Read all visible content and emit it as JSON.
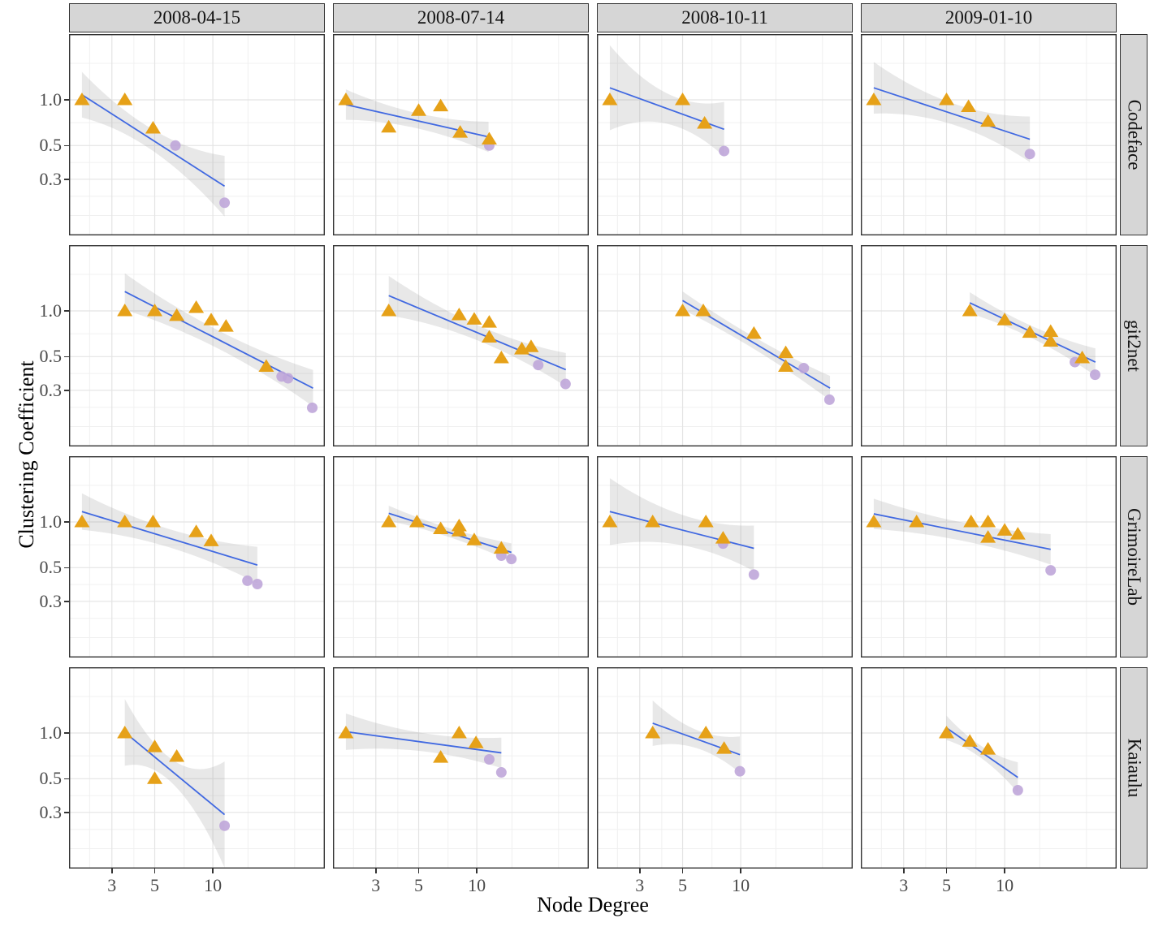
{
  "chart_data": {
    "type": "scatter",
    "title": "",
    "xlabel": "Node Degree",
    "ylabel": "Clustering Coefficient",
    "x_scale": "log10",
    "y_scale": "log10",
    "x_ticks": [
      3,
      5,
      10
    ],
    "y_ticks": [
      "1.0",
      "0.5",
      "0.3"
    ],
    "x_tick_values": [
      3,
      5,
      10
    ],
    "y_tick_values": [
      1.0,
      0.5,
      0.3
    ],
    "x_domain": [
      1.8,
      38
    ],
    "y_domain": [
      0.128,
      2.71
    ],
    "x_grid_minor": [
      2.3,
      3.9,
      7.1,
      15.2,
      26.5
    ],
    "y_grid_minor": [
      1.74,
      0.707,
      0.387,
      0.232,
      0.173
    ],
    "grid": "on",
    "legend_position": "none",
    "facet_columns": [
      "2008-04-15",
      "2008-07-14",
      "2008-10-11",
      "2009-01-10"
    ],
    "facet_rows": [
      "Codeface",
      "git2net",
      "GrimoireLab",
      "Kaiaulu"
    ],
    "series_markers": [
      "triangle",
      "circle"
    ],
    "panels": [
      {
        "row": "Codeface",
        "col": "2008-04-15",
        "triangles": [
          [
            2.1,
            1.0
          ],
          [
            3.5,
            1.0
          ],
          [
            4.9,
            0.65
          ]
        ],
        "circles": [
          [
            6.4,
            0.5
          ],
          [
            11.5,
            0.21
          ]
        ],
        "trend": [
          2.1,
          1.08,
          11.5,
          0.27
        ],
        "band": [
          0.15,
          0.07,
          0.2
        ]
      },
      {
        "row": "Codeface",
        "col": "2008-07-14",
        "triangles": [
          [
            2.1,
            1.0
          ],
          [
            3.5,
            0.66
          ],
          [
            5.0,
            0.85
          ],
          [
            6.5,
            0.91
          ],
          [
            8.2,
            0.61
          ],
          [
            11.6,
            0.55
          ]
        ],
        "circles": [
          [
            11.6,
            0.5
          ]
        ],
        "trend": [
          2.1,
          0.93,
          11.5,
          0.57
        ],
        "band": [
          0.1,
          0.05,
          0.1
        ]
      },
      {
        "row": "Codeface",
        "col": "2008-10-11",
        "triangles": [
          [
            2.1,
            1.0
          ],
          [
            5.0,
            1.0
          ],
          [
            6.5,
            0.7
          ]
        ],
        "circles": [
          [
            8.2,
            0.46
          ]
        ],
        "trend": [
          2.1,
          1.2,
          8.2,
          0.64
        ],
        "band": [
          0.28,
          0.1,
          0.18
        ]
      },
      {
        "row": "Codeface",
        "col": "2009-01-10",
        "triangles": [
          [
            2.1,
            1.0
          ],
          [
            5.0,
            1.0
          ],
          [
            6.5,
            0.9
          ],
          [
            8.2,
            0.72
          ]
        ],
        "circles": [
          [
            13.5,
            0.44
          ]
        ],
        "trend": [
          2.1,
          1.2,
          13.5,
          0.55
        ],
        "band": [
          0.17,
          0.07,
          0.15
        ]
      },
      {
        "row": "git2net",
        "col": "2008-04-15",
        "triangles": [
          [
            3.5,
            1.0
          ],
          [
            5.0,
            1.0
          ],
          [
            6.5,
            0.93
          ],
          [
            8.2,
            1.05
          ],
          [
            9.8,
            0.87
          ],
          [
            11.7,
            0.79
          ],
          [
            18.9,
            0.43
          ]
        ],
        "circles": [
          [
            22.7,
            0.37
          ],
          [
            24.5,
            0.36
          ],
          [
            32.7,
            0.23
          ]
        ],
        "trend": [
          3.5,
          1.34,
          33,
          0.31
        ],
        "band": [
          0.12,
          0.06,
          0.12
        ]
      },
      {
        "row": "git2net",
        "col": "2008-07-14",
        "triangles": [
          [
            3.5,
            1.0
          ],
          [
            8.1,
            0.94
          ],
          [
            9.7,
            0.88
          ],
          [
            11.6,
            0.84
          ],
          [
            11.6,
            0.67
          ],
          [
            13.4,
            0.49
          ],
          [
            17.1,
            0.56
          ],
          [
            19.1,
            0.58
          ]
        ],
        "circles": [
          [
            20.8,
            0.44
          ],
          [
            28.8,
            0.33
          ]
        ],
        "trend": [
          3.5,
          1.26,
          28.9,
          0.41
        ],
        "band": [
          0.13,
          0.05,
          0.11
        ]
      },
      {
        "row": "git2net",
        "col": "2008-10-11",
        "triangles": [
          [
            5.0,
            1.0
          ],
          [
            6.4,
            1.0
          ],
          [
            11.7,
            0.71
          ],
          [
            17.1,
            0.53
          ],
          [
            17.1,
            0.43
          ]
        ],
        "circles": [
          [
            21.2,
            0.42
          ],
          [
            28.8,
            0.26
          ]
        ],
        "trend": [
          5.0,
          1.17,
          29,
          0.31
        ],
        "band": [
          0.06,
          0.04,
          0.08
        ]
      },
      {
        "row": "git2net",
        "col": "2009-01-10",
        "triangles": [
          [
            6.6,
            1.0
          ],
          [
            10.0,
            0.87
          ],
          [
            13.5,
            0.72
          ],
          [
            17.3,
            0.73
          ],
          [
            17.3,
            0.63
          ],
          [
            25.2,
            0.49
          ]
        ],
        "circles": [
          [
            23.1,
            0.46
          ],
          [
            29.4,
            0.38
          ]
        ],
        "trend": [
          6.6,
          1.13,
          29.5,
          0.46
        ],
        "band": [
          0.07,
          0.04,
          0.09
        ]
      },
      {
        "row": "GrimoireLab",
        "col": "2008-04-15",
        "triangles": [
          [
            2.1,
            1.0
          ],
          [
            3.5,
            1.0
          ],
          [
            4.9,
            1.0
          ],
          [
            8.2,
            0.86
          ],
          [
            9.8,
            0.75
          ]
        ],
        "circles": [
          [
            15.1,
            0.41
          ],
          [
            17.0,
            0.39
          ]
        ],
        "trend": [
          2.1,
          1.17,
          17,
          0.52
        ],
        "band": [
          0.12,
          0.06,
          0.12
        ]
      },
      {
        "row": "GrimoireLab",
        "col": "2008-07-14",
        "triangles": [
          [
            3.5,
            1.0
          ],
          [
            4.9,
            1.0
          ],
          [
            6.5,
            0.9
          ],
          [
            8.1,
            0.94
          ],
          [
            8.1,
            0.87
          ],
          [
            9.7,
            0.76
          ],
          [
            13.4,
            0.67
          ]
        ],
        "circles": [
          [
            13.4,
            0.6
          ],
          [
            15.1,
            0.57
          ]
        ],
        "trend": [
          3.5,
          1.14,
          15.1,
          0.63
        ],
        "band": [
          0.05,
          0.03,
          0.06
        ]
      },
      {
        "row": "GrimoireLab",
        "col": "2008-10-11",
        "triangles": [
          [
            2.1,
            1.0
          ],
          [
            3.5,
            1.0
          ],
          [
            6.6,
            1.0
          ],
          [
            8.1,
            0.78
          ]
        ],
        "circles": [
          [
            8.1,
            0.72
          ],
          [
            11.7,
            0.45
          ]
        ],
        "trend": [
          2.1,
          1.17,
          11.7,
          0.67
        ],
        "band": [
          0.22,
          0.1,
          0.15
        ]
      },
      {
        "row": "GrimoireLab",
        "col": "2009-01-10",
        "triangles": [
          [
            2.1,
            1.0
          ],
          [
            3.5,
            1.0
          ],
          [
            6.7,
            1.0
          ],
          [
            8.2,
            1.0
          ],
          [
            8.2,
            0.79
          ],
          [
            10.0,
            0.88
          ],
          [
            11.7,
            0.83
          ]
        ],
        "circles": [
          [
            17.3,
            0.48
          ]
        ],
        "trend": [
          2.1,
          1.13,
          17.3,
          0.66
        ],
        "band": [
          0.1,
          0.06,
          0.1
        ]
      },
      {
        "row": "Kaiaulu",
        "col": "2008-04-15",
        "triangles": [
          [
            3.5,
            1.0
          ],
          [
            5.0,
            0.81
          ],
          [
            6.5,
            0.7
          ],
          [
            5.0,
            0.5
          ]
        ],
        "circles": [
          [
            11.5,
            0.245
          ]
        ],
        "trend": [
          3.5,
          1.01,
          11.5,
          0.29
        ],
        "band": [
          0.22,
          0.08,
          0.35
        ]
      },
      {
        "row": "Kaiaulu",
        "col": "2008-07-14",
        "triangles": [
          [
            2.1,
            1.0
          ],
          [
            8.1,
            1.0
          ],
          [
            9.9,
            0.86
          ],
          [
            6.5,
            0.69
          ]
        ],
        "circles": [
          [
            11.6,
            0.67
          ],
          [
            13.4,
            0.55
          ]
        ],
        "trend": [
          2.1,
          1.02,
          13.4,
          0.74
        ],
        "band": [
          0.12,
          0.06,
          0.1
        ]
      },
      {
        "row": "Kaiaulu",
        "col": "2008-10-11",
        "triangles": [
          [
            3.5,
            1.0
          ],
          [
            6.6,
            1.0
          ],
          [
            8.2,
            0.79
          ]
        ],
        "circles": [
          [
            9.9,
            0.56
          ]
        ],
        "trend": [
          3.5,
          1.16,
          9.9,
          0.72
        ],
        "band": [
          0.15,
          0.06,
          0.12
        ]
      },
      {
        "row": "Kaiaulu",
        "col": "2009-01-10",
        "triangles": [
          [
            5.0,
            1.0
          ],
          [
            6.6,
            0.88
          ],
          [
            8.2,
            0.78
          ]
        ],
        "circles": [
          [
            11.7,
            0.42
          ]
        ],
        "trend": [
          5.0,
          1.08,
          11.7,
          0.51
        ],
        "band": [
          0.08,
          0.04,
          0.1
        ]
      }
    ]
  },
  "colors": {
    "triangle": "#E6A118",
    "circle": "#BFA6D9",
    "trend_line": "#4169E1",
    "confidence_band": "rgba(150,150,150,0.22)",
    "strip_background": "#d6d6d6",
    "panel_border": "#333333",
    "grid_major": "#e4e4e4",
    "grid_minor": "#f0f0f0",
    "tick_text": "#4a4a4a"
  }
}
